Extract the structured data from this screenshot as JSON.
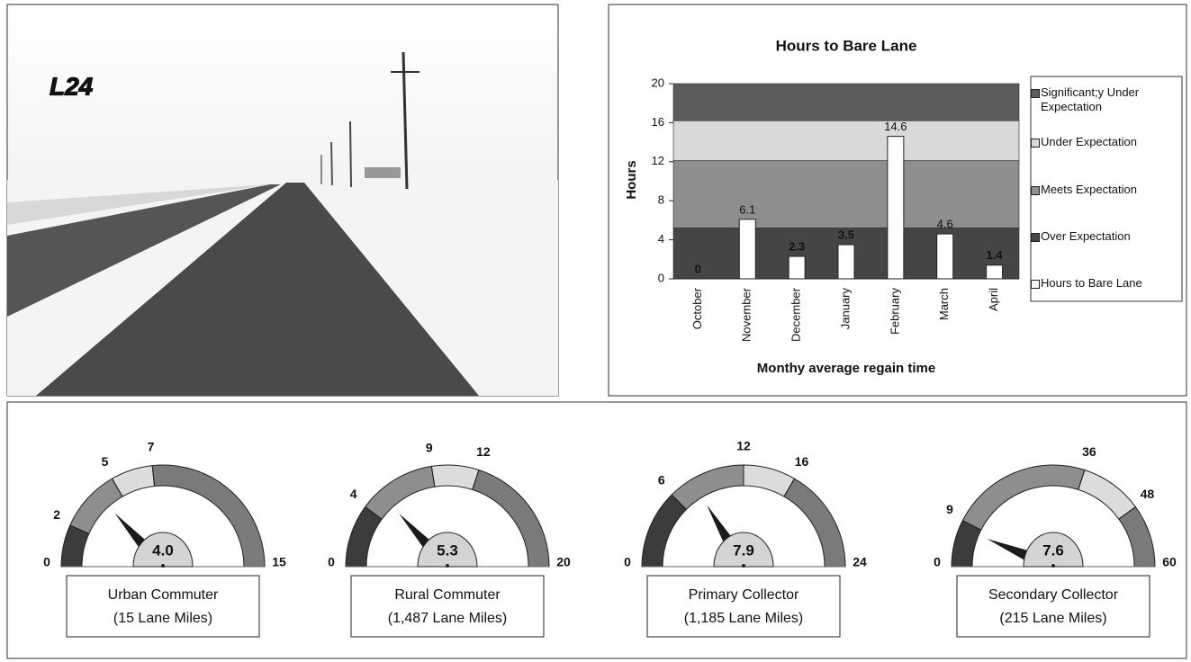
{
  "photo": {
    "label": "L24"
  },
  "chart_data": [
    {
      "type": "bar",
      "title": "Hours to Bare Lane",
      "y_label": "Hours",
      "x_label": "Monthy average regain time",
      "categories": [
        "October",
        "November",
        "December",
        "January",
        "February",
        "March",
        "April"
      ],
      "series": [
        {
          "name": "Hours to Bare Lane",
          "color": "#ffffff",
          "values": [
            0,
            6.1,
            2.3,
            3.5,
            14.6,
            4.6,
            1.4
          ]
        }
      ],
      "bands": [
        {
          "name": "Significant;y Under Expectation",
          "color": "#5c5c5c",
          "range": [
            16.2,
            20
          ]
        },
        {
          "name": "Under Expectation",
          "color": "#d9d9d9",
          "range": [
            12.1,
            16.2
          ]
        },
        {
          "name": "Meets Expectation",
          "color": "#8e8e8e",
          "range": [
            5.2,
            12.1
          ]
        },
        {
          "name": "Over Expectation",
          "color": "#454545",
          "range": [
            0,
            5.2
          ]
        }
      ],
      "ylim": [
        0,
        20
      ],
      "yticks": [
        0,
        4,
        8,
        12,
        16,
        20
      ]
    },
    {
      "type": "gauge",
      "name": "Urban Commuter",
      "subtitle": "(15 Lane Miles)",
      "values": [
        4
      ],
      "value_labels": [
        "4.0"
      ],
      "ylim": [
        0,
        15
      ],
      "yticks": [
        0,
        2,
        5,
        7,
        15
      ],
      "band_colors": [
        "#3c3c3c",
        "#8e8e8e",
        "#dcdcdc",
        "#7a7a7a"
      ]
    },
    {
      "type": "gauge",
      "name": "Rural Commuter",
      "subtitle": "(1,487 Lane Miles)",
      "values": [
        5.3
      ],
      "value_labels": [
        "5.3"
      ],
      "ylim": [
        0,
        20
      ],
      "yticks": [
        0,
        4,
        9,
        12,
        20
      ],
      "band_colors": [
        "#3c3c3c",
        "#8e8e8e",
        "#dcdcdc",
        "#7a7a7a"
      ]
    },
    {
      "type": "gauge",
      "name": "Primary Collector",
      "subtitle": "(1,185 Lane Miles)",
      "values": [
        7.9
      ],
      "value_labels": [
        "7.9"
      ],
      "ylim": [
        0,
        24
      ],
      "yticks": [
        0,
        6,
        12,
        16,
        24
      ],
      "band_colors": [
        "#3c3c3c",
        "#8e8e8e",
        "#dcdcdc",
        "#7a7a7a"
      ]
    },
    {
      "type": "gauge",
      "name": "Secondary Collector",
      "subtitle": "(215 Lane Miles)",
      "values": [
        7.6
      ],
      "value_labels": [
        "7.6"
      ],
      "ylim": [
        0,
        60
      ],
      "yticks": [
        0,
        9,
        36,
        48,
        60
      ],
      "band_colors": [
        "#3c3c3c",
        "#8e8e8e",
        "#dcdcdc",
        "#7a7a7a"
      ]
    }
  ]
}
